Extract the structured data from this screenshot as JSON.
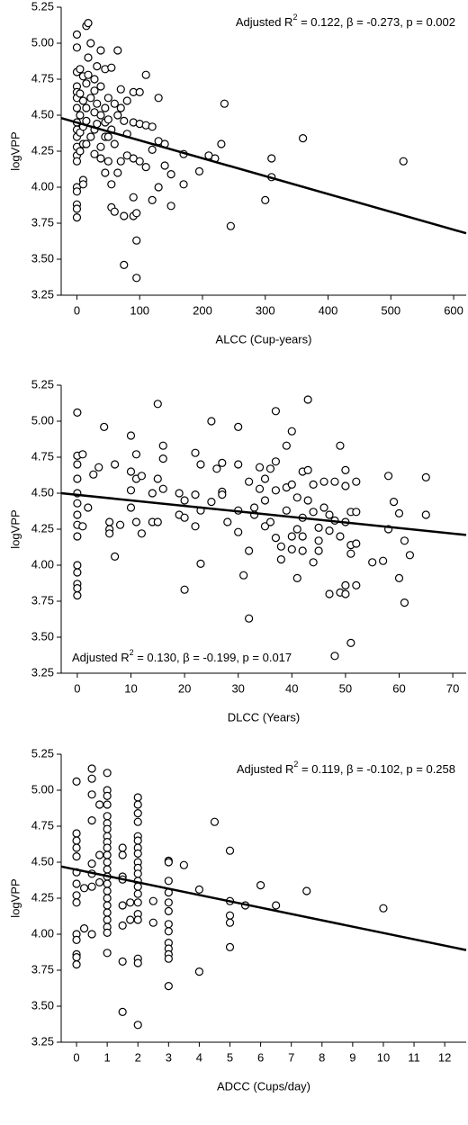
{
  "chart_data": [
    {
      "type": "scatter",
      "xlabel": "ALCC (Cup-years)",
      "ylabel": "logVPP",
      "annotation": {
        "text": "Adjusted R",
        "sup": "2",
        "rest": " = 0.122, β = -0.273, p = 0.002"
      },
      "annotation_position": "top-right",
      "xlim": [
        -25,
        620
      ],
      "ylim": [
        3.25,
        5.25
      ],
      "xticks": [
        0,
        100,
        200,
        300,
        400,
        500,
        600
      ],
      "yticks": [
        3.25,
        {
          "value": 3.5,
          "label": "3.50"
        },
        3.75,
        {
          "value": 4,
          "label": "4.00"
        },
        4.25,
        {
          "value": 4.5,
          "label": "4.50"
        },
        4.75,
        {
          "value": 5,
          "label": "5.00"
        },
        5.25
      ],
      "fit": {
        "x": [
          -25,
          620
        ],
        "y": [
          4.48,
          3.68
        ]
      },
      "x": [
        0,
        0,
        0,
        0,
        0,
        0,
        0,
        0,
        0,
        0,
        0,
        0,
        0,
        0,
        0,
        0,
        0,
        0,
        5,
        5,
        5,
        5,
        5,
        10,
        10,
        10,
        10,
        10,
        10,
        15,
        15,
        15,
        15,
        15,
        18,
        18,
        18,
        22,
        22,
        22,
        28,
        28,
        28,
        28,
        28,
        32,
        32,
        32,
        38,
        38,
        38,
        38,
        38,
        45,
        45,
        45,
        45,
        45,
        50,
        50,
        50,
        50,
        55,
        55,
        55,
        55,
        60,
        60,
        60,
        65,
        65,
        65,
        70,
        70,
        70,
        75,
        75,
        75,
        80,
        80,
        80,
        90,
        90,
        90,
        90,
        90,
        95,
        95,
        95,
        100,
        100,
        100,
        110,
        110,
        110,
        120,
        120,
        120,
        130,
        130,
        130,
        140,
        140,
        150,
        150,
        170,
        170,
        195,
        210,
        220,
        230,
        235,
        245,
        300,
        310,
        310,
        360,
        520
      ],
      "y": [
        5.06,
        4.97,
        4.8,
        4.7,
        4.66,
        4.62,
        4.55,
        4.45,
        4.4,
        4.35,
        4.28,
        4.22,
        4.18,
        4.0,
        3.97,
        3.88,
        3.85,
        3.79,
        4.82,
        4.65,
        4.5,
        4.38,
        4.25,
        4.77,
        4.6,
        4.42,
        4.3,
        4.05,
        4.02,
        5.12,
        4.72,
        4.55,
        4.46,
        4.3,
        5.14,
        4.9,
        4.78,
        5.0,
        4.62,
        4.35,
        4.75,
        4.67,
        4.52,
        4.4,
        4.23,
        4.84,
        4.58,
        4.44,
        4.95,
        4.7,
        4.5,
        4.28,
        4.2,
        4.82,
        4.55,
        4.45,
        4.35,
        4.1,
        4.62,
        4.47,
        4.35,
        4.18,
        4.83,
        4.4,
        3.86,
        4.02,
        4.58,
        4.3,
        3.83,
        4.95,
        4.5,
        4.1,
        4.68,
        4.55,
        4.18,
        4.46,
        3.8,
        3.46,
        4.6,
        4.37,
        4.22,
        4.66,
        4.45,
        4.2,
        3.93,
        3.8,
        3.63,
        3.37,
        3.82,
        4.66,
        4.44,
        4.18,
        4.78,
        4.43,
        4.14,
        4.26,
        3.91,
        4.42,
        4.62,
        4.32,
        4.0,
        4.15,
        4.3,
        3.87,
        4.09,
        4.23,
        4.02,
        4.11,
        4.22,
        4.2,
        4.3,
        4.58,
        3.73,
        3.91,
        4.2,
        4.07,
        4.34,
        4.18
      ]
    },
    {
      "type": "scatter",
      "xlabel": "DLCC (Years)",
      "ylabel": "logVPP",
      "annotation": {
        "text": "Adjusted R",
        "sup": "2",
        "rest": " = 0.130, β = -0.199, p = 0.017"
      },
      "annotation_position": "bottom-left",
      "xlim": [
        -3,
        72.5
      ],
      "ylim": [
        3.25,
        5.25
      ],
      "xticks": [
        0,
        10,
        20,
        30,
        40,
        50,
        60,
        70
      ],
      "yticks": [
        3.25,
        {
          "value": 3.5,
          "label": "3.50"
        },
        3.75,
        {
          "value": 4,
          "label": "4.00"
        },
        4.25,
        {
          "value": 4.5,
          "label": "4.50"
        },
        4.75,
        {
          "value": 5,
          "label": "5.00"
        },
        5.25
      ],
      "fit": {
        "x": [
          -3,
          72.5
        ],
        "y": [
          4.5,
          4.21
        ]
      },
      "x": [
        0,
        0,
        0,
        0,
        0,
        0,
        0,
        0,
        0,
        0,
        0,
        0,
        0,
        0,
        1,
        1,
        2,
        3,
        4,
        5,
        6,
        6,
        6,
        7,
        7,
        8,
        10,
        10,
        10,
        10,
        11,
        11,
        11,
        12,
        12,
        14,
        14,
        15,
        15,
        15,
        16,
        16,
        16,
        19,
        19,
        20,
        20,
        20,
        22,
        22,
        22,
        23,
        23,
        23,
        25,
        25,
        26,
        27,
        27,
        27,
        28,
        30,
        30,
        30,
        30,
        31,
        32,
        32,
        32,
        33,
        33,
        34,
        34,
        35,
        35,
        35,
        36,
        36,
        37,
        37,
        37,
        37,
        38,
        38,
        39,
        39,
        39,
        40,
        40,
        40,
        40,
        41,
        41,
        41,
        42,
        42,
        42,
        42,
        43,
        43,
        43,
        44,
        44,
        44,
        45,
        45,
        45,
        46,
        46,
        47,
        47,
        47,
        48,
        48,
        48,
        49,
        49,
        49,
        50,
        50,
        50,
        50,
        50,
        51,
        51,
        51,
        51,
        52,
        52,
        52,
        52,
        55,
        57,
        58,
        58,
        59,
        60,
        60,
        61,
        61,
        62,
        65,
        65
      ],
      "y": [
        5.06,
        4.76,
        4.7,
        4.6,
        4.5,
        4.43,
        4.35,
        4.28,
        4.2,
        4.0,
        3.95,
        3.87,
        3.84,
        3.79,
        4.77,
        4.27,
        4.4,
        4.63,
        4.68,
        4.96,
        4.25,
        4.3,
        4.22,
        4.7,
        4.06,
        4.28,
        4.9,
        4.65,
        4.52,
        4.4,
        4.77,
        4.6,
        4.3,
        4.62,
        4.22,
        4.3,
        4.5,
        5.12,
        4.6,
        4.3,
        4.83,
        4.74,
        4.53,
        4.35,
        4.5,
        4.45,
        4.33,
        3.83,
        4.78,
        4.49,
        4.27,
        4.7,
        4.38,
        4.01,
        5.0,
        4.44,
        4.67,
        4.71,
        4.51,
        4.49,
        4.3,
        4.96,
        4.7,
        4.38,
        4.23,
        3.93,
        4.58,
        4.1,
        3.63,
        4.4,
        4.35,
        4.68,
        4.53,
        4.6,
        4.45,
        4.27,
        4.67,
        4.3,
        5.07,
        4.72,
        4.52,
        4.19,
        4.04,
        4.13,
        4.83,
        4.54,
        4.38,
        4.93,
        4.56,
        4.2,
        4.11,
        4.47,
        4.25,
        3.91,
        4.65,
        4.33,
        4.1,
        4.2,
        5.15,
        4.66,
        4.45,
        4.56,
        4.37,
        4.02,
        4.26,
        4.17,
        4.1,
        4.58,
        4.4,
        4.35,
        4.24,
        3.8,
        4.58,
        4.31,
        3.37,
        4.83,
        4.2,
        3.81,
        4.66,
        4.55,
        4.3,
        3.8,
        3.86,
        4.37,
        4.14,
        4.08,
        3.46,
        4.58,
        4.37,
        4.15,
        3.86,
        4.02,
        4.03,
        4.62,
        4.25,
        4.44,
        4.36,
        3.91,
        4.17,
        3.74,
        4.07,
        4.61,
        4.35
      ]
    },
    {
      "type": "scatter",
      "xlabel": "ADCC (Cups/day)",
      "ylabel": "logVPP",
      "annotation": {
        "text": "Adjusted R",
        "sup": "2",
        "rest": " = 0.119, β = -0.102, p = 0.258"
      },
      "annotation_position": "top-right",
      "xlim": [
        -0.5,
        12.7
      ],
      "ylim": [
        3.25,
        5.25
      ],
      "xticks": [
        0,
        1,
        2,
        3,
        4,
        5,
        6,
        7,
        8,
        9,
        10,
        11,
        12
      ],
      "yticks": [
        3.25,
        {
          "value": 3.5,
          "label": "3.50"
        },
        3.75,
        {
          "value": 4,
          "label": "4.00"
        },
        4.25,
        {
          "value": 4.5,
          "label": "4.50"
        },
        4.75,
        {
          "value": 5,
          "label": "5.00"
        },
        5.25
      ],
      "fit": {
        "x": [
          -0.5,
          12.7
        ],
        "y": [
          4.47,
          3.89
        ]
      },
      "x": [
        0,
        0,
        0,
        0,
        0,
        0,
        0,
        0,
        0,
        0,
        0,
        0,
        0,
        0,
        0.25,
        0.25,
        0.5,
        0.5,
        0.5,
        0.5,
        0.5,
        0.5,
        0.5,
        0.5,
        0.75,
        0.75,
        0.75,
        1,
        1,
        1,
        1,
        1,
        1,
        1,
        1,
        1,
        1,
        1,
        1,
        1,
        1,
        1,
        1,
        1,
        1,
        1,
        1,
        1,
        1,
        1,
        1.5,
        1.5,
        1.5,
        1.5,
        1.5,
        1.5,
        1.5,
        1.5,
        1.75,
        1.75,
        2,
        2,
        2,
        2,
        2,
        2,
        2,
        2,
        2,
        2,
        2,
        2,
        2,
        2,
        2,
        2,
        2,
        2,
        2,
        2,
        2.5,
        2.5,
        3,
        3,
        3,
        3,
        3,
        3,
        3,
        3,
        3,
        3,
        3,
        3,
        3,
        3.5,
        4,
        4,
        4.5,
        5,
        5,
        5,
        5,
        5,
        5.5,
        6,
        6.5,
        7.5,
        10
      ],
      "y": [
        5.06,
        4.7,
        4.65,
        4.6,
        4.54,
        4.43,
        4.35,
        4.27,
        4.22,
        4.0,
        3.96,
        3.86,
        3.84,
        3.79,
        4.32,
        4.04,
        5.15,
        5.08,
        4.97,
        4.79,
        4.49,
        4.42,
        4.33,
        4.0,
        4.9,
        4.55,
        4.36,
        5.12,
        5.0,
        4.96,
        4.9,
        4.82,
        4.77,
        4.73,
        4.68,
        4.64,
        4.6,
        4.55,
        4.5,
        4.45,
        4.4,
        4.35,
        4.3,
        4.25,
        4.2,
        4.15,
        4.1,
        4.05,
        4.01,
        3.87,
        4.6,
        4.55,
        4.4,
        4.38,
        4.2,
        4.06,
        3.81,
        3.46,
        4.22,
        4.1,
        4.95,
        4.9,
        4.84,
        4.78,
        4.68,
        4.65,
        4.6,
        4.56,
        4.5,
        4.46,
        4.42,
        4.37,
        4.33,
        4.28,
        4.22,
        4.14,
        4.1,
        3.83,
        3.8,
        3.37,
        4.23,
        4.08,
        4.51,
        4.5,
        4.37,
        4.29,
        4.22,
        4.16,
        4.07,
        4.02,
        3.94,
        3.9,
        3.86,
        3.83,
        3.64,
        4.48,
        4.31,
        3.74,
        4.78,
        4.58,
        4.23,
        4.13,
        4.08,
        3.91,
        4.2,
        4.34,
        4.2,
        4.3,
        4.18
      ]
    }
  ]
}
